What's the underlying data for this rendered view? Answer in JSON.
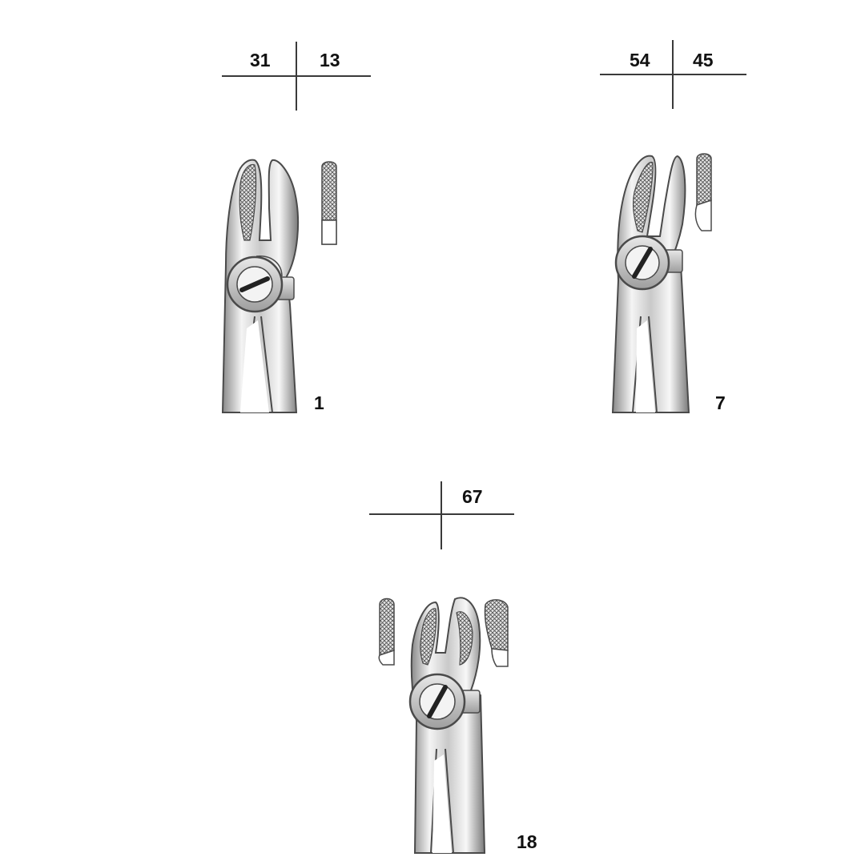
{
  "instruments": [
    {
      "tooth_chart": {
        "upper_left": "31",
        "upper_right": "13"
      },
      "model_number": "1"
    },
    {
      "tooth_chart": {
        "upper_left": "54",
        "upper_right": "45"
      },
      "model_number": "7"
    },
    {
      "tooth_chart": {
        "upper_left": "",
        "upper_right": "67"
      },
      "model_number": "18"
    }
  ],
  "colors": {
    "steel_light": "#f2f2f2",
    "steel_mid": "#bdbdbd",
    "steel_dark": "#6e6e6e",
    "outline": "#4a4a4a",
    "label": "#111111"
  },
  "icons": [
    "forceps-icon",
    "serrated-jaw-tip-icon",
    "hinge-screw-icon"
  ]
}
